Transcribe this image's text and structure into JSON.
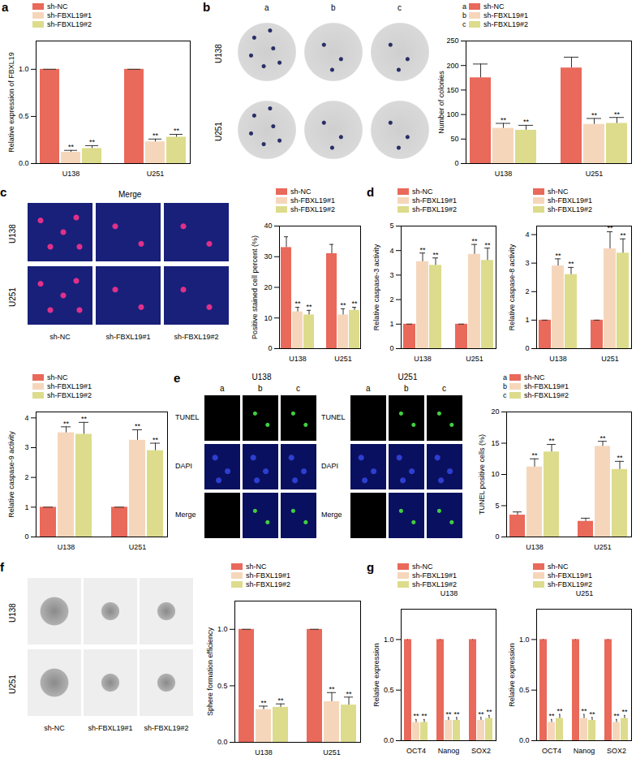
{
  "chart_data": [
    {
      "type": "bar",
      "panel": "a",
      "ylabel": "Relative expression of FBXL19",
      "categories": [
        "U138",
        "U251"
      ],
      "series": [
        {
          "name": "sh-NC",
          "color": "#e9695a",
          "values": [
            1,
            1
          ],
          "errors": [
            0,
            0
          ],
          "significance": [
            "",
            ""
          ]
        },
        {
          "name": "sh-FBXL19#1",
          "color": "#f6d6bb",
          "values": [
            0.12,
            0.23
          ],
          "errors": [
            0.02,
            0.03
          ],
          "significance": [
            "**",
            "**"
          ]
        },
        {
          "name": "sh-FBXL19#2",
          "color": "#dcdc8c",
          "values": [
            0.16,
            0.28
          ],
          "errors": [
            0.03,
            0.03
          ],
          "significance": [
            "**",
            "**"
          ]
        }
      ],
      "ylim": [
        0,
        1.3
      ],
      "yticks": [
        {
          "value": 0,
          "label": "0.0"
        },
        {
          "value": 0.5,
          "label": "0.5"
        },
        {
          "value": 1,
          "label": "1.0"
        }
      ]
    },
    {
      "type": "bar",
      "ylabel": "Number of colonies",
      "categories": [
        "U138",
        "U251"
      ],
      "series": [
        {
          "name": "sh-NC",
          "key": "a",
          "color": "#e9695a",
          "values": [
            175,
            195
          ],
          "errors": [
            28,
            22
          ],
          "significance": [
            "",
            ""
          ]
        },
        {
          "name": "sh-FBXL19#1",
          "key": "b",
          "color": "#f6d6bb",
          "values": [
            72,
            80
          ],
          "errors": [
            10,
            12
          ],
          "significance": [
            "**",
            "**"
          ]
        },
        {
          "name": "sh-FBXL19#2",
          "key": "c",
          "color": "#dcdc8c",
          "values": [
            68,
            82
          ],
          "errors": [
            10,
            12
          ],
          "significance": [
            "**",
            "**"
          ]
        }
      ],
      "ylim": [
        0,
        250
      ],
      "yticks": [
        0,
        50,
        100,
        150,
        200,
        250
      ]
    },
    {
      "type": "bar",
      "ylabel": "Positive stained cell percent (%)",
      "categories": [
        "U138",
        "U251"
      ],
      "series": [
        {
          "name": "sh-NC",
          "color": "#e9695a",
          "values": [
            33,
            31
          ],
          "errors": [
            3.5,
            3
          ],
          "significance": [
            "",
            ""
          ]
        },
        {
          "name": "sh-FBXL19#1",
          "color": "#f6d6bb",
          "values": [
            12,
            11
          ],
          "errors": [
            1.5,
            2
          ],
          "significance": [
            "**",
            "**"
          ]
        },
        {
          "name": "sh-FBXL19#2",
          "color": "#dcdc8c",
          "values": [
            11,
            12.5
          ],
          "errors": [
            1.5,
            1
          ],
          "significance": [
            "**",
            "**"
          ]
        }
      ],
      "ylim": [
        0,
        40
      ],
      "yticks": [
        0,
        10,
        20,
        30,
        40
      ]
    },
    {
      "type": "bar",
      "panel": "d",
      "ylabel": "Relative caspase-3 activity",
      "categories": [
        "U138",
        "U251"
      ],
      "series": [
        {
          "name": "sh-NC",
          "color": "#e9695a",
          "values": [
            1,
            1
          ],
          "errors": [
            0,
            0
          ],
          "significance": [
            "",
            ""
          ]
        },
        {
          "name": "sh-FBXL19#1",
          "color": "#f6d6bb",
          "values": [
            3.55,
            3.85
          ],
          "errors": [
            0.35,
            0.4
          ],
          "significance": [
            "**",
            "**"
          ]
        },
        {
          "name": "sh-FBXL19#2",
          "color": "#dcdc8c",
          "values": [
            3.4,
            3.6
          ],
          "errors": [
            0.3,
            0.5
          ],
          "significance": [
            "**",
            "**"
          ]
        }
      ],
      "ylim": [
        0,
        5
      ],
      "yticks": [
        0,
        1,
        2,
        3,
        4,
        5
      ]
    },
    {
      "type": "bar",
      "ylabel": "Relative caspase-8 activity",
      "categories": [
        "U138",
        "U251"
      ],
      "series": [
        {
          "name": "sh-NC",
          "color": "#e9695a",
          "values": [
            1,
            1
          ],
          "errors": [
            0,
            0
          ],
          "significance": [
            "",
            ""
          ]
        },
        {
          "name": "sh-FBXL19#1",
          "color": "#f6d6bb",
          "values": [
            2.9,
            3.5
          ],
          "errors": [
            0.25,
            0.6
          ],
          "significance": [
            "**",
            "**"
          ]
        },
        {
          "name": "sh-FBXL19#2",
          "color": "#dcdc8c",
          "values": [
            2.6,
            3.35
          ],
          "errors": [
            0.25,
            0.5
          ],
          "significance": [
            "**",
            "**"
          ]
        }
      ],
      "ylim": [
        0,
        4.3
      ],
      "yticks": [
        0,
        1,
        2,
        3,
        4
      ]
    },
    {
      "type": "bar",
      "ylabel": "Relative caspase-9 activity",
      "categories": [
        "U138",
        "U251"
      ],
      "series": [
        {
          "name": "sh-NC",
          "color": "#e9695a",
          "values": [
            1,
            1
          ],
          "errors": [
            0,
            0
          ],
          "significance": [
            "",
            ""
          ]
        },
        {
          "name": "sh-FBXL19#1",
          "color": "#f6d6bb",
          "values": [
            3.5,
            3.25
          ],
          "errors": [
            0.2,
            0.35
          ],
          "significance": [
            "**",
            "**"
          ]
        },
        {
          "name": "sh-FBXL19#2",
          "color": "#dcdc8c",
          "values": [
            3.45,
            2.9
          ],
          "errors": [
            0.4,
            0.25
          ],
          "significance": [
            "**",
            "**"
          ]
        }
      ],
      "ylim": [
        0,
        4.2
      ],
      "yticks": [
        0,
        1,
        2,
        3,
        4
      ]
    },
    {
      "type": "bar",
      "ylabel": "TUNEL positive cells (%)",
      "categories": [
        "U138",
        "U251"
      ],
      "series": [
        {
          "name": "sh-NC",
          "key": "a",
          "color": "#e9695a",
          "values": [
            3.5,
            2.5
          ],
          "errors": [
            0.5,
            0.5
          ],
          "significance": [
            "",
            ""
          ]
        },
        {
          "name": "sh-FBXL19#1",
          "key": "b",
          "color": "#f6d6bb",
          "values": [
            11.2,
            14.5
          ],
          "errors": [
            1.3,
            0.8
          ],
          "significance": [
            "**",
            "**"
          ]
        },
        {
          "name": "sh-FBXL19#2",
          "key": "c",
          "color": "#dcdc8c",
          "values": [
            13.6,
            10.8
          ],
          "errors": [
            1.2,
            1.3
          ],
          "significance": [
            "**",
            "**"
          ]
        }
      ],
      "ylim": [
        0,
        20
      ],
      "yticks": [
        0,
        5,
        10,
        15,
        20
      ]
    },
    {
      "type": "bar",
      "ylabel": "Sphere formation efficiency",
      "categories": [
        "U138",
        "U251"
      ],
      "series": [
        {
          "name": "sh-NC",
          "color": "#e9695a",
          "values": [
            1,
            1
          ],
          "errors": [
            0,
            0
          ],
          "significance": [
            "",
            ""
          ]
        },
        {
          "name": "sh-FBXL19#1",
          "color": "#f6d6bb",
          "values": [
            0.29,
            0.36
          ],
          "errors": [
            0.03,
            0.08
          ],
          "significance": [
            "**",
            "**"
          ]
        },
        {
          "name": "sh-FBXL19#2",
          "color": "#dcdc8c",
          "values": [
            0.31,
            0.33
          ],
          "errors": [
            0.03,
            0.07
          ],
          "significance": [
            "**",
            "**"
          ]
        }
      ],
      "ylim": [
        0,
        1.25
      ],
      "yticks": [
        {
          "value": 0,
          "label": "0.0"
        },
        {
          "value": 0.5,
          "label": "0.5"
        },
        {
          "value": 1,
          "label": "1.0"
        }
      ]
    },
    {
      "type": "bar",
      "panel": "g",
      "title": "U138",
      "ylabel": "Relative expression",
      "categories": [
        "OCT4",
        "Nanog",
        "SOX2"
      ],
      "series": [
        {
          "name": "sh-NC",
          "color": "#e9695a",
          "values": [
            1,
            1,
            1
          ],
          "errors": [
            0,
            0,
            0
          ],
          "significance": [
            "",
            "",
            ""
          ]
        },
        {
          "name": "sh-FBXL19#1",
          "color": "#f6d6bb",
          "values": [
            0.18,
            0.2,
            0.2
          ],
          "errors": [
            0.03,
            0.03,
            0.03
          ],
          "significance": [
            "**",
            "**",
            "**"
          ]
        },
        {
          "name": "sh-FBXL19#2",
          "color": "#dcdc8c",
          "values": [
            0.18,
            0.2,
            0.22
          ],
          "errors": [
            0.03,
            0.03,
            0.03
          ],
          "significance": [
            "**",
            "**",
            "**"
          ]
        }
      ],
      "ylim": [
        0,
        1.3
      ],
      "yticks": [
        {
          "value": 0,
          "label": "0.0"
        },
        {
          "value": 0.5,
          "label": "0.5"
        },
        {
          "value": 1,
          "label": "1.0"
        }
      ]
    },
    {
      "type": "bar",
      "title": "U251",
      "ylabel": "Relative expression",
      "categories": [
        "OCT4",
        "Nanog",
        "SOX2"
      ],
      "series": [
        {
          "name": "sh-NC",
          "color": "#e9695a",
          "values": [
            1,
            1,
            1
          ],
          "errors": [
            0,
            0,
            0
          ],
          "significance": [
            "",
            "",
            ""
          ]
        },
        {
          "name": "sh-FBXL19#1",
          "color": "#f6d6bb",
          "values": [
            0.18,
            0.22,
            0.18
          ],
          "errors": [
            0.03,
            0.04,
            0.03
          ],
          "significance": [
            "**",
            "**",
            "**"
          ]
        },
        {
          "name": "sh-FBXL19#2",
          "color": "#dcdc8c",
          "values": [
            0.22,
            0.2,
            0.22
          ],
          "errors": [
            0.04,
            0.03,
            0.03
          ],
          "significance": [
            "**",
            "**",
            "**"
          ]
        }
      ],
      "ylim": [
        0,
        1.3
      ],
      "yticks": [
        {
          "value": 0,
          "label": "0.0"
        },
        {
          "value": 0.5,
          "label": "0.5"
        },
        {
          "value": 1,
          "label": "1.0"
        }
      ]
    }
  ],
  "image_panels": [
    {
      "panel": "b",
      "rows": [
        "U138",
        "U251"
      ],
      "columns": [
        "a",
        "b",
        "c"
      ]
    },
    {
      "panel": "c",
      "title": "Merge",
      "rows": [
        "U138",
        "U251"
      ],
      "columns": [
        "sh-NC",
        "sh-FBXL19#1",
        "sh-FBXL19#2"
      ]
    },
    {
      "panel": "e",
      "groups": [
        "U138",
        "U251"
      ],
      "columns": [
        "a",
        "b",
        "c"
      ],
      "rows": [
        "TUNEL",
        "DAPI",
        "Merge"
      ]
    },
    {
      "panel": "f",
      "rows": [
        "U138",
        "U251"
      ],
      "columns": [
        "sh-NC",
        "sh-FBXL19#1",
        "sh-FBXL19#2"
      ]
    }
  ]
}
